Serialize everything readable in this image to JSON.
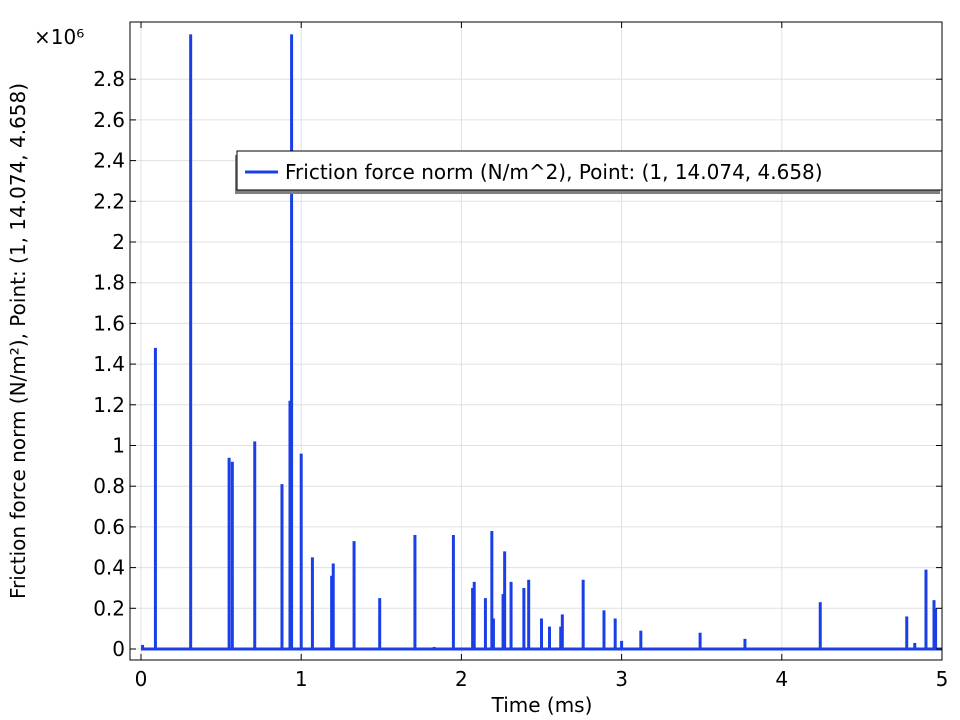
{
  "chart_data": {
    "type": "line",
    "xlabel": "Time (ms)",
    "ylabel": "Friction force norm (N/m²), Point: (1, 14.074, 4.658)",
    "y_multiplier_label": "×10⁶",
    "xlim": [
      0,
      5
    ],
    "ylim": [
      0,
      3
    ],
    "x_ticks": [
      0,
      1,
      2,
      3,
      4,
      5
    ],
    "y_ticks": [
      0,
      0.2,
      0.4,
      0.6,
      0.8,
      1,
      1.2,
      1.4,
      1.6,
      1.8,
      2,
      2.2,
      2.4,
      2.6,
      2.8
    ],
    "grid": true,
    "legend_position": "top-right",
    "series": [
      {
        "name": "Friction force norm (N/m^2), Point: (1, 14.074, 4.658)",
        "color": "#1a3fe6",
        "spikes": [
          [
            0.01,
            0.02
          ],
          [
            0.09,
            1.48
          ],
          [
            0.31,
            3.02
          ],
          [
            0.55,
            0.94
          ],
          [
            0.57,
            0.92
          ],
          [
            0.71,
            1.02
          ],
          [
            0.88,
            0.81
          ],
          [
            0.93,
            1.22
          ],
          [
            0.94,
            3.02
          ],
          [
            1.0,
            0.96
          ],
          [
            1.07,
            0.45
          ],
          [
            1.19,
            0.36
          ],
          [
            1.2,
            0.42
          ],
          [
            1.33,
            0.53
          ],
          [
            1.49,
            0.25
          ],
          [
            1.71,
            0.56
          ],
          [
            1.83,
            0.01
          ],
          [
            1.95,
            0.56
          ],
          [
            2.07,
            0.3
          ],
          [
            2.08,
            0.33
          ],
          [
            2.15,
            0.25
          ],
          [
            2.19,
            0.58
          ],
          [
            2.2,
            0.15
          ],
          [
            2.26,
            0.27
          ],
          [
            2.27,
            0.48
          ],
          [
            2.31,
            0.33
          ],
          [
            2.39,
            0.3
          ],
          [
            2.42,
            0.34
          ],
          [
            2.5,
            0.15
          ],
          [
            2.55,
            0.11
          ],
          [
            2.62,
            0.11
          ],
          [
            2.63,
            0.17
          ],
          [
            2.76,
            0.34
          ],
          [
            2.89,
            0.19
          ],
          [
            2.96,
            0.15
          ],
          [
            3.0,
            0.04
          ],
          [
            3.12,
            0.09
          ],
          [
            3.49,
            0.08
          ],
          [
            3.77,
            0.05
          ],
          [
            3.92,
            0.0
          ],
          [
            4.24,
            0.23
          ],
          [
            4.65,
            0.0
          ],
          [
            4.78,
            0.16
          ],
          [
            4.83,
            0.03
          ],
          [
            4.9,
            0.39
          ],
          [
            4.95,
            0.24
          ],
          [
            4.96,
            0.2
          ]
        ]
      }
    ]
  }
}
